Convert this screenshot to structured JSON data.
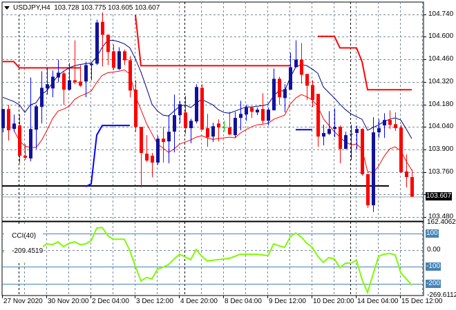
{
  "header": {
    "symbol": "USDJPY,H4",
    "open": "103.728",
    "high": "103.775",
    "low": "103.605",
    "close": "103.607"
  },
  "cci_header": {
    "name": "CCI(40)",
    "value": "-209.4519"
  },
  "colors": {
    "bull_body": "#12129a",
    "bull_wick": "#0000ff",
    "bear": "#ff0000",
    "doji": "#00c000",
    "ma_navy": "#000080",
    "ma_red": "#ff0000",
    "resistance_step": "#ff0000",
    "support_step": "#0000ff",
    "cci_line": "#7cfc00",
    "cci_levels": "#4682b4",
    "grid": "#778899"
  },
  "chart_data": [
    {
      "type": "candlestick",
      "symbol": "USDJPY",
      "timeframe": "H4",
      "grid": true,
      "ylim": [
        103.48,
        104.74
      ],
      "y_ticks": [
        "104.740",
        "104.600",
        "104.460",
        "104.320",
        "104.180",
        "104.040",
        "103.900",
        "103.760",
        "103.480"
      ],
      "current_price_label": "103.607",
      "current_price": 103.607,
      "x_tick_labels": [
        "27 Nov 2020",
        "30 Nov 20:00",
        "2 Dec 04:00",
        "3 Dec 12:00",
        "4 Dec 20:00",
        "8 Dec 04:00",
        "9 Dec 12:00",
        "10 Dec 20:00",
        "14 Dec 04:00",
        "15 Dec 12:00"
      ],
      "ohlc": [
        [
          104.032,
          104.151,
          104.006,
          104.151
        ],
        [
          104.151,
          104.177,
          103.955,
          104.019
        ],
        [
          104.027,
          104.117,
          104.01,
          104.061
        ],
        [
          104.049,
          104.117,
          103.814,
          103.861
        ],
        [
          103.861,
          103.933,
          103.835,
          103.848
        ],
        [
          103.844,
          104.347,
          103.827,
          104.027
        ],
        [
          104.023,
          104.177,
          103.903,
          104.168
        ],
        [
          104.164,
          104.386,
          104.061,
          104.283
        ],
        [
          104.279,
          104.411,
          104.241,
          104.305
        ],
        [
          104.279,
          104.39,
          104.224,
          104.352
        ],
        [
          104.347,
          104.458,
          104.317,
          104.377
        ],
        [
          104.373,
          104.39,
          104.177,
          104.271
        ],
        [
          104.271,
          104.437,
          104.266,
          104.33
        ],
        [
          104.33,
          104.578,
          104.305,
          104.317
        ],
        [
          104.322,
          104.424,
          104.288,
          104.296
        ],
        [
          104.322,
          104.446,
          104.224,
          104.424
        ],
        [
          104.424,
          104.437,
          104.33,
          104.433
        ],
        [
          104.433,
          104.706,
          104.424,
          104.689
        ],
        [
          104.693,
          104.753,
          104.416,
          104.612
        ],
        [
          104.612,
          104.616,
          104.424,
          104.505
        ],
        [
          104.51,
          104.552,
          104.394,
          104.407
        ],
        [
          104.399,
          104.535,
          104.394,
          104.51
        ],
        [
          104.51,
          104.522,
          104.424,
          104.454
        ],
        [
          104.454,
          104.48,
          104.224,
          104.266
        ],
        [
          104.271,
          104.33,
          104.01,
          104.04
        ],
        [
          104.04,
          104.04,
          103.664,
          103.878
        ],
        [
          103.874,
          103.989,
          103.822,
          103.831
        ],
        [
          103.861,
          103.878,
          103.728,
          103.818
        ],
        [
          103.818,
          103.985,
          103.805,
          103.967
        ],
        [
          103.967,
          104.04,
          103.818,
          103.946
        ],
        [
          103.95,
          104.113,
          103.814,
          104.01
        ],
        [
          104.01,
          104.241,
          103.882,
          104.113
        ],
        [
          104.113,
          104.202,
          104.061,
          104.181
        ],
        [
          104.13,
          104.232,
          103.997,
          104.032
        ],
        [
          104.032,
          104.091,
          103.938,
          104.078
        ],
        [
          104.074,
          104.305,
          104.061,
          104.288
        ],
        [
          104.283,
          104.305,
          104.019,
          104.023
        ],
        [
          104.032,
          104.121,
          103.916,
          103.976
        ],
        [
          103.98,
          104.066,
          103.946,
          104.044
        ],
        [
          104.061,
          104.087,
          103.95,
          104.036
        ],
        [
          104.036,
          104.078,
          104.01,
          104.036
        ],
        [
          104.036,
          104.134,
          103.989,
          103.993
        ],
        [
          103.989,
          104.134,
          103.972,
          104.096
        ],
        [
          104.096,
          104.202,
          104.019,
          104.121
        ],
        [
          104.117,
          104.177,
          104.078,
          104.16
        ],
        [
          104.16,
          104.168,
          104.096,
          104.134
        ],
        [
          104.13,
          104.16,
          104.113,
          104.147
        ],
        [
          104.151,
          104.249,
          104.057,
          104.078
        ],
        [
          104.078,
          104.16,
          104.049,
          104.147
        ],
        [
          104.143,
          104.403,
          104.143,
          104.339
        ],
        [
          104.339,
          104.352,
          104.177,
          104.224
        ],
        [
          104.219,
          104.305,
          104.13,
          104.275
        ],
        [
          104.271,
          104.501,
          104.271,
          104.411
        ],
        [
          104.411,
          104.578,
          104.411,
          104.458
        ],
        [
          104.458,
          104.561,
          104.309,
          104.364
        ],
        [
          104.369,
          104.369,
          104.207,
          104.296
        ],
        [
          104.3,
          104.33,
          104.164,
          104.207
        ],
        [
          104.245,
          104.245,
          103.916,
          103.98
        ],
        [
          103.98,
          104.053,
          103.925,
          104.002
        ],
        [
          103.997,
          104.138,
          103.989,
          104.027
        ],
        [
          104.027,
          104.155,
          103.976,
          104.04
        ],
        [
          104.04,
          104.049,
          103.814,
          103.903
        ],
        [
          103.903,
          104.01,
          103.903,
          103.989
        ],
        [
          103.993,
          104.053,
          103.835,
          103.997
        ],
        [
          104.002,
          104.049,
          103.899,
          104.027
        ],
        [
          104.027,
          104.032,
          103.737,
          103.746
        ],
        [
          103.746,
          103.75,
          103.536,
          103.553
        ],
        [
          103.553,
          104.1,
          103.511,
          104.006
        ],
        [
          104.006,
          104.087,
          103.972,
          104.032
        ],
        [
          104.049,
          104.125,
          103.972,
          104.083
        ],
        [
          104.083,
          104.143,
          104.027,
          104.053
        ],
        [
          104.057,
          104.13,
          104.015,
          104.032
        ],
        [
          104.036,
          104.053,
          103.758,
          103.758
        ],
        [
          103.763,
          103.869,
          103.664,
          103.728
        ],
        [
          103.728,
          103.775,
          103.605,
          103.607
        ]
      ],
      "ma_navy": [
        104.224,
        104.211,
        104.198,
        104.177,
        104.13,
        104.177,
        104.189,
        104.241,
        104.266,
        104.313,
        104.36,
        104.386,
        104.407,
        104.42,
        104.428,
        104.433,
        104.437,
        104.475,
        104.535,
        104.578,
        104.578,
        104.569,
        104.556,
        104.531,
        104.463,
        104.381,
        104.283,
        104.181,
        104.138,
        104.113,
        104.108,
        104.138,
        104.168,
        104.177,
        104.16,
        104.189,
        104.211,
        104.194,
        104.177,
        104.147,
        104.13,
        104.125,
        104.138,
        104.151,
        104.164,
        104.164,
        104.168,
        104.172,
        104.181,
        104.232,
        104.266,
        104.262,
        104.347,
        104.411,
        104.428,
        104.42,
        104.399,
        104.373,
        104.288,
        104.253,
        104.219,
        104.181,
        104.147,
        104.121,
        104.104,
        104.087,
        104.019,
        104.036,
        104.053,
        104.074,
        104.087,
        104.096,
        104.083,
        104.027,
        103.967
      ],
      "ma_red": [
        null,
        null,
        104.019,
        103.955,
        103.921,
        103.912,
        103.912,
        103.955,
        104.019,
        104.091,
        104.138,
        104.151,
        104.168,
        104.211,
        104.232,
        104.245,
        104.262,
        104.317,
        104.36,
        104.377,
        104.381,
        104.386,
        104.394,
        104.369,
        104.232,
        104.147,
        104.061,
        103.997,
        103.933,
        103.908,
        103.882,
        103.903,
        103.933,
        103.946,
        103.959,
        103.976,
        103.985,
        103.972,
        103.963,
        103.967,
        103.972,
        103.976,
        103.972,
        104.002,
        104.023,
        104.04,
        104.053,
        104.057,
        104.061,
        104.087,
        104.1,
        104.113,
        104.181,
        104.219,
        104.241,
        104.228,
        104.207,
        104.168,
        104.091,
        104.049,
        104.01,
        103.976,
        103.946,
        103.929,
        103.933,
        103.903,
        103.763,
        103.754,
        103.797,
        103.857,
        103.903,
        103.916,
        103.891,
        103.827,
        103.771
      ],
      "resistance_step": [
        104.446,
        104.446,
        104.446,
        104.407,
        104.407,
        104.407,
        104.407,
        104.407,
        104.407,
        104.407,
        104.407,
        104.407,
        104.407,
        104.407,
        104.407,
        null,
        null,
        null,
        null,
        null,
        null,
        null,
        null,
        null,
        104.736,
        104.42,
        104.42,
        104.42,
        104.42,
        104.42,
        104.42,
        104.42,
        104.42,
        104.42,
        104.42,
        104.42,
        104.42,
        104.42,
        104.42,
        104.42,
        104.42,
        104.42,
        104.42,
        104.42,
        104.42,
        104.42,
        104.42,
        104.42,
        104.42,
        104.42,
        104.42,
        104.42,
        104.42,
        null,
        null,
        null,
        null,
        104.603,
        104.603,
        104.603,
        104.603,
        104.531,
        104.531,
        104.531,
        104.531,
        104.446,
        104.271,
        104.271,
        104.271,
        104.271,
        104.271,
        104.271,
        104.271,
        104.271,
        104.271
      ],
      "support_step": [
        null,
        null,
        null,
        null,
        null,
        null,
        null,
        null,
        null,
        null,
        null,
        null,
        null,
        null,
        null,
        103.669,
        103.686,
        103.989,
        104.049,
        104.049,
        104.049,
        104.049,
        104.049,
        104.049,
        null,
        null,
        null,
        null,
        null,
        null,
        null,
        null,
        null,
        null,
        null,
        null,
        null,
        null,
        null,
        null,
        null,
        null,
        null,
        null,
        null,
        null,
        null,
        null,
        null,
        null,
        null,
        null,
        null,
        104.023,
        104.023,
        104.023,
        104.023,
        null,
        null,
        null,
        null,
        null,
        null,
        null,
        null,
        null,
        null,
        null,
        null,
        null,
        null,
        null,
        null,
        null,
        null
      ],
      "horizontal_level": 103.673
    },
    {
      "type": "line",
      "name": "CCI(40)",
      "ylim": [
        -269.6112,
        162.4062
      ],
      "y_ticks": [
        "162.4062",
        "100",
        "0.00",
        "-100",
        "-200",
        "-269.6112"
      ],
      "levels": [
        100,
        -100,
        -200
      ],
      "values": [
        -8,
        -20,
        -25,
        -57,
        -74,
        -25,
        -20,
        16,
        37,
        33,
        49,
        20,
        41,
        49,
        33,
        37,
        57,
        131,
        135,
        86,
        65,
        65,
        65,
        -4,
        -98,
        -184,
        -163,
        -172,
        -114,
        -102,
        -86,
        -53,
        -25,
        -41,
        -57,
        4,
        -37,
        -65,
        -61,
        -57,
        -53,
        -49,
        -37,
        -25,
        -25,
        -25,
        -25,
        -29,
        -33,
        37,
        25,
        16,
        78,
        102,
        78,
        41,
        16,
        -37,
        -74,
        -45,
        -53,
        -106,
        -78,
        -78,
        -61,
        -176,
        -253,
        -143,
        -37,
        -25,
        -20,
        -29,
        -135,
        -172,
        -209
      ]
    }
  ]
}
